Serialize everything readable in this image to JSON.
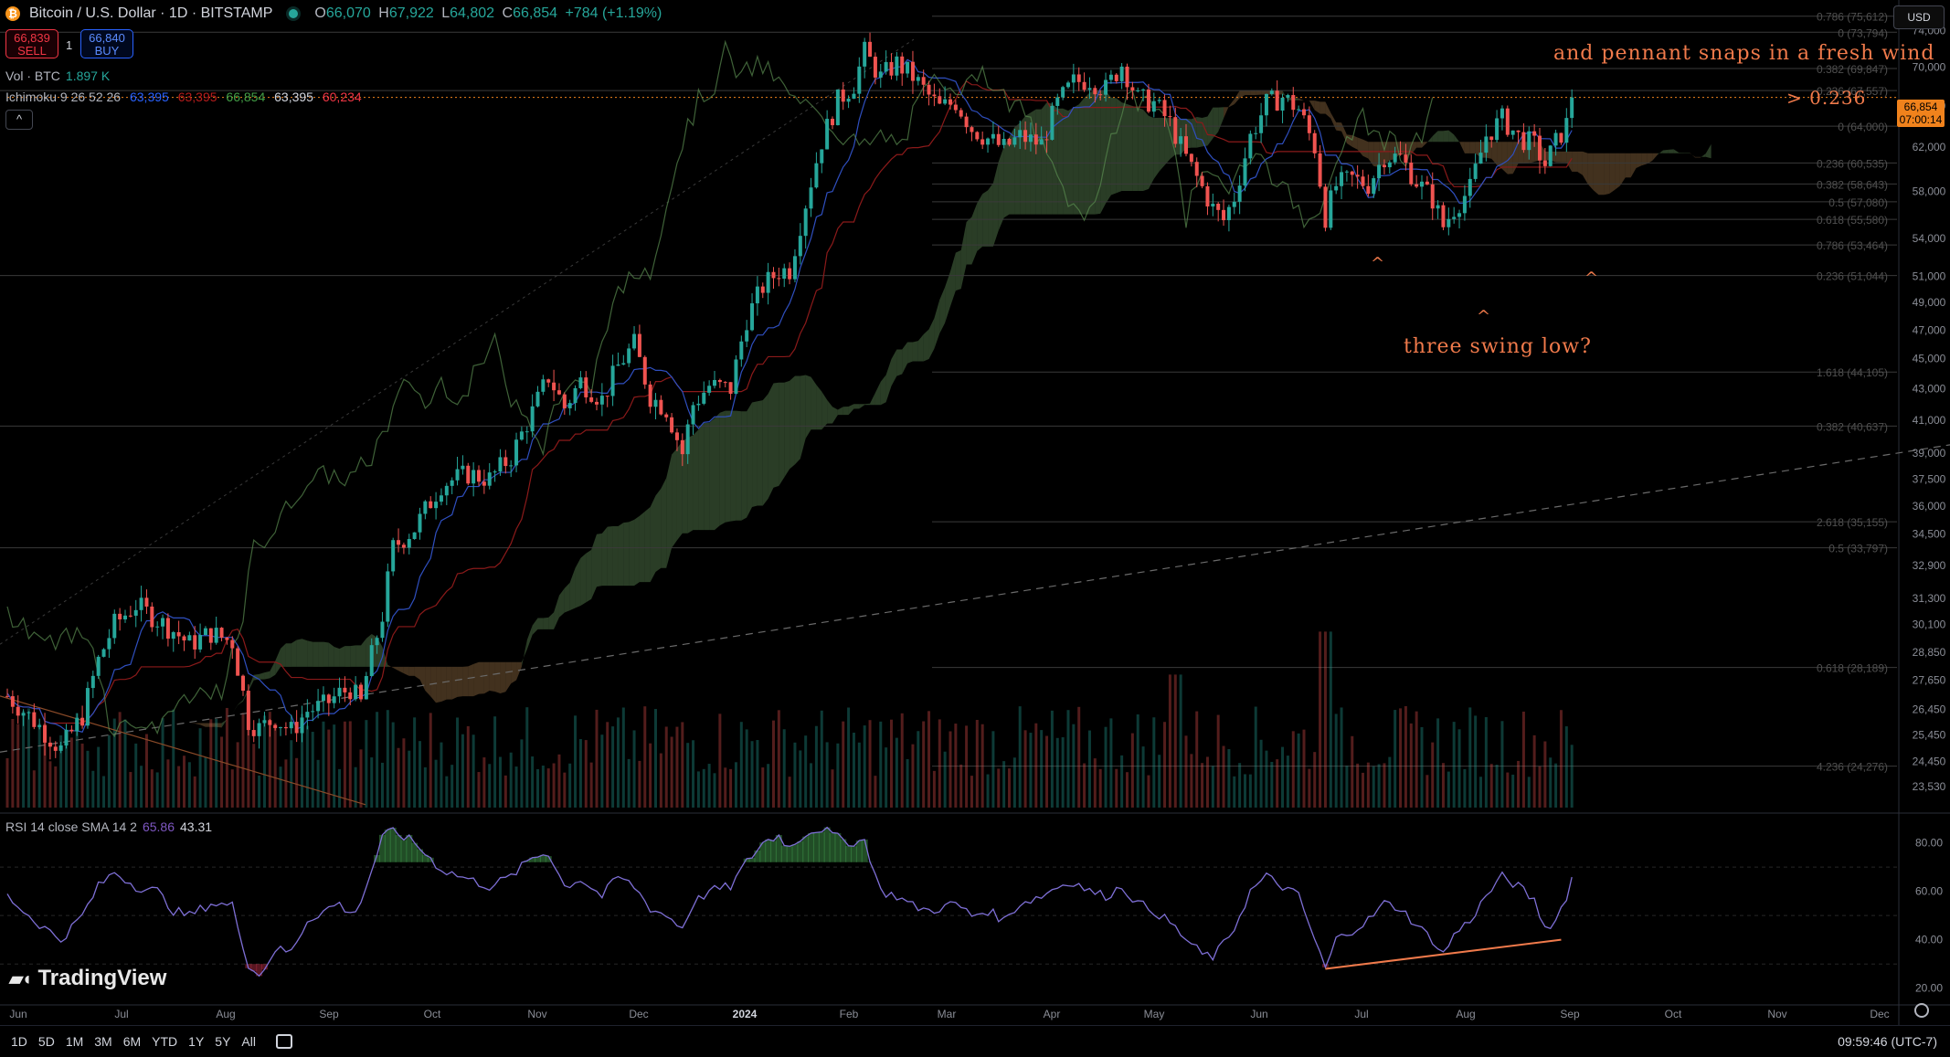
{
  "header": {
    "symbol": "Bitcoin / U.S. Dollar · 1D · BITSTAMP",
    "ohlc": [
      {
        "k": "O",
        "v": "66,070"
      },
      {
        "k": "H",
        "v": "67,922"
      },
      {
        "k": "L",
        "v": "64,802"
      },
      {
        "k": "C",
        "v": "66,854"
      }
    ],
    "change": "+784 (+1.19%)"
  },
  "trade": {
    "sell_price": "66,839",
    "sell_label": "SELL",
    "spread": "1",
    "buy_price": "66,840",
    "buy_label": "BUY"
  },
  "volume": {
    "label": "Vol · BTC",
    "value": "1.897 K"
  },
  "ichimoku": {
    "label": "Ichimoku 9 26 52 26",
    "values": [
      {
        "v": "63,395",
        "color": "#2962ff"
      },
      {
        "v": "63,395",
        "color": "#b71c1c"
      },
      {
        "v": "66,854",
        "color": "#43a047"
      },
      {
        "v": "63,395",
        "color": "#d1d4dc"
      },
      {
        "v": "60,234",
        "color": "#f23645"
      }
    ]
  },
  "collapse_label": "^",
  "currency": "USD",
  "price_tag": {
    "price": "66,854",
    "countdown": "07:00:14"
  },
  "rsi": {
    "label": "RSI 14 close SMA 14 2",
    "value": "65.86",
    "sma": "43.31"
  },
  "annotations": {
    "top": "and pennant snaps in a fresh wind",
    "fib": "> 0.236",
    "swing": "three swing low?",
    "carets": [
      "^",
      "^",
      "^"
    ]
  },
  "logo": "TradingView",
  "bottom_bar": {
    "ranges": [
      "1D",
      "5D",
      "1M",
      "3M",
      "6M",
      "YTD",
      "1Y",
      "5Y",
      "All"
    ],
    "clock": "09:59:46 (UTC-7)"
  },
  "chart_data": {
    "type": "candlestick",
    "interval": "1D",
    "exchange": "BITSTAMP",
    "y_scale": "log",
    "ylim": [
      22800,
      76000
    ],
    "y_ticks": [
      "74,000",
      "70,000",
      "66,000",
      "62,000",
      "58,000",
      "54,000",
      "51,000",
      "49,000",
      "47,000",
      "45,000",
      "43,000",
      "41,000",
      "39,000",
      "37,500",
      "36,000",
      "34,500",
      "32,900",
      "31,300",
      "30,100",
      "28,850",
      "27,650",
      "26,450",
      "25,450",
      "24,450",
      "23,530"
    ],
    "x_labels": [
      "Jun",
      "Jul",
      "Aug",
      "Sep",
      "Oct",
      "Nov",
      "Dec",
      "2024",
      "Feb",
      "Mar",
      "Apr",
      "May",
      "Jun",
      "Jul",
      "Aug",
      "Sep",
      "Oct",
      "Nov",
      "Dec"
    ],
    "price_path": [
      [
        0,
        27000
      ],
      [
        5,
        26000
      ],
      [
        10,
        24900
      ],
      [
        14,
        26200
      ],
      [
        17,
        28500
      ],
      [
        20,
        30100
      ],
      [
        24,
        31000
      ],
      [
        28,
        30300
      ],
      [
        31,
        29800
      ],
      [
        34,
        29200
      ],
      [
        38,
        29700
      ],
      [
        42,
        29300
      ],
      [
        45,
        26000
      ],
      [
        47,
        25700
      ],
      [
        50,
        26100
      ],
      [
        53,
        25600
      ],
      [
        56,
        26400
      ],
      [
        59,
        26600
      ],
      [
        62,
        27100
      ],
      [
        64,
        27300
      ],
      [
        66,
        26700
      ],
      [
        67,
        27800
      ],
      [
        70,
        30500
      ],
      [
        72,
        33800
      ],
      [
        76,
        34800
      ],
      [
        81,
        37200
      ],
      [
        86,
        37800
      ],
      [
        90,
        37500
      ],
      [
        94,
        38800
      ],
      [
        98,
        41500
      ],
      [
        101,
        43800
      ],
      [
        104,
        41800
      ],
      [
        107,
        43500
      ],
      [
        111,
        42300
      ],
      [
        114,
        44500
      ],
      [
        117,
        46000
      ],
      [
        120,
        42500
      ],
      [
        123,
        41700
      ],
      [
        126,
        39000
      ],
      [
        128,
        42000
      ],
      [
        131,
        43200
      ],
      [
        135,
        43000
      ],
      [
        138,
        47800
      ],
      [
        141,
        50200
      ],
      [
        144,
        51400
      ],
      [
        146,
        51500
      ],
      [
        149,
        57000
      ],
      [
        152,
        62600
      ],
      [
        155,
        66500
      ],
      [
        158,
        68200
      ],
      [
        160,
        71600
      ],
      [
        163,
        68900
      ],
      [
        166,
        70400
      ],
      [
        169,
        69000
      ],
      [
        172,
        67000
      ],
      [
        174,
        65800
      ],
      [
        177,
        66400
      ],
      [
        180,
        63800
      ],
      [
        183,
        62800
      ],
      [
        186,
        61900
      ],
      [
        189,
        63000
      ],
      [
        193,
        62300
      ],
      [
        196,
        66200
      ],
      [
        199,
        68400
      ],
      [
        202,
        68700
      ],
      [
        205,
        67700
      ],
      [
        208,
        70300
      ],
      [
        211,
        66700
      ],
      [
        214,
        66300
      ],
      [
        217,
        64300
      ],
      [
        220,
        61000
      ],
      [
        223,
        58300
      ],
      [
        225,
        56500
      ],
      [
        227,
        55500
      ],
      [
        229,
        57500
      ],
      [
        232,
        63000
      ],
      [
        235,
        66200
      ],
      [
        238,
        66900
      ],
      [
        241,
        65700
      ],
      [
        244,
        62000
      ],
      [
        246,
        55800
      ],
      [
        248,
        58500
      ],
      [
        251,
        59100
      ],
      [
        254,
        58600
      ],
      [
        257,
        61200
      ],
      [
        260,
        61000
      ],
      [
        263,
        58900
      ],
      [
        266,
        57300
      ],
      [
        268,
        55000
      ],
      [
        270,
        56500
      ],
      [
        273,
        58200
      ],
      [
        276,
        63100
      ],
      [
        279,
        64700
      ],
      [
        282,
        63000
      ],
      [
        285,
        62200
      ],
      [
        287,
        60400
      ],
      [
        289,
        62400
      ],
      [
        291,
        64200
      ],
      [
        292,
        66854
      ]
    ],
    "volume_spikes": [
      [
        218,
        "Mar"
      ],
      [
        246,
        "Aug"
      ]
    ],
    "fib_levels": [
      {
        "label": "0.786 (75,612)",
        "price": 75612,
        "full": false
      },
      {
        "label": "0 (73,794)",
        "price": 73794,
        "full": true
      },
      {
        "label": "0.382 (69,847)",
        "price": 69847,
        "full": false
      },
      {
        "label": "0.236 (67,557)",
        "price": 67557,
        "full": true
      },
      {
        "label": "0 (64,000)",
        "price": 64000,
        "full": false
      },
      {
        "label": "0.236 (60,535)",
        "price": 60535,
        "full": false
      },
      {
        "label": "0.382 (58,643)",
        "price": 58643,
        "full": false
      },
      {
        "label": "0.5 (57,080)",
        "price": 57080,
        "full": false
      },
      {
        "label": "0.618 (55,580)",
        "price": 55580,
        "full": false
      },
      {
        "label": "0.786 (53,464)",
        "price": 53464,
        "full": false
      },
      {
        "label": "0.236 (51,044)",
        "price": 51044,
        "full": true
      },
      {
        "label": "1.618 (44,105)",
        "price": 44105,
        "full": false
      },
      {
        "label": "0.382 (40,637)",
        "price": 40637,
        "full": true
      },
      {
        "label": "2.618 (35,155)",
        "price": 35155,
        "full": false
      },
      {
        "label": "0.5 (33,797)",
        "price": 33797,
        "full": true
      },
      {
        "label": "0.618 (28,189)",
        "price": 28189,
        "full": false
      },
      {
        "label": "4.236 (24,276)",
        "price": 24276,
        "full": false
      }
    ],
    "rsi_panel": {
      "ylim": [
        15,
        90
      ],
      "y_ticks": [
        "80.00",
        "60.00",
        "40.00",
        "20.00"
      ],
      "path": [
        [
          0,
          58
        ],
        [
          5,
          48
        ],
        [
          10,
          40
        ],
        [
          14,
          50
        ],
        [
          17,
          62
        ],
        [
          20,
          68
        ],
        [
          24,
          62
        ],
        [
          28,
          60
        ],
        [
          31,
          52
        ],
        [
          34,
          50
        ],
        [
          38,
          55
        ],
        [
          42,
          54
        ],
        [
          45,
          30
        ],
        [
          47,
          25
        ],
        [
          50,
          36
        ],
        [
          53,
          35
        ],
        [
          56,
          48
        ],
        [
          59,
          52
        ],
        [
          62,
          55
        ],
        [
          64,
          50
        ],
        [
          66,
          56
        ],
        [
          67,
          62
        ],
        [
          70,
          82
        ],
        [
          72,
          85
        ],
        [
          76,
          80
        ],
        [
          81,
          69
        ],
        [
          86,
          65
        ],
        [
          90,
          62
        ],
        [
          94,
          66
        ],
        [
          98,
          74
        ],
        [
          101,
          76
        ],
        [
          104,
          62
        ],
        [
          107,
          65
        ],
        [
          111,
          58
        ],
        [
          114,
          66
        ],
        [
          117,
          62
        ],
        [
          120,
          53
        ],
        [
          123,
          50
        ],
        [
          126,
          45
        ],
        [
          128,
          55
        ],
        [
          131,
          60
        ],
        [
          135,
          62
        ],
        [
          138,
          72
        ],
        [
          141,
          80
        ],
        [
          144,
          83
        ],
        [
          146,
          78
        ],
        [
          149,
          84
        ],
        [
          152,
          86
        ],
        [
          155,
          82
        ],
        [
          158,
          80
        ],
        [
          160,
          81
        ],
        [
          163,
          60
        ],
        [
          166,
          58
        ],
        [
          169,
          54
        ],
        [
          172,
          52
        ],
        [
          174,
          53
        ],
        [
          177,
          55
        ],
        [
          180,
          50
        ],
        [
          183,
          52
        ],
        [
          186,
          48
        ],
        [
          189,
          55
        ],
        [
          193,
          58
        ],
        [
          196,
          62
        ],
        [
          199,
          64
        ],
        [
          202,
          60
        ],
        [
          205,
          58
        ],
        [
          208,
          62
        ],
        [
          211,
          55
        ],
        [
          214,
          52
        ],
        [
          217,
          47
        ],
        [
          220,
          40
        ],
        [
          223,
          34
        ],
        [
          225,
          33
        ],
        [
          227,
          38
        ],
        [
          229,
          45
        ],
        [
          232,
          60
        ],
        [
          235,
          66
        ],
        [
          238,
          62
        ],
        [
          241,
          58
        ],
        [
          244,
          40
        ],
        [
          246,
          28
        ],
        [
          248,
          40
        ],
        [
          251,
          44
        ],
        [
          254,
          48
        ],
        [
          257,
          55
        ],
        [
          260,
          53
        ],
        [
          263,
          46
        ],
        [
          266,
          40
        ],
        [
          268,
          34
        ],
        [
          270,
          42
        ],
        [
          273,
          48
        ],
        [
          276,
          58
        ],
        [
          279,
          66
        ],
        [
          282,
          62
        ],
        [
          285,
          56
        ],
        [
          287,
          45
        ],
        [
          289,
          48
        ],
        [
          291,
          58
        ],
        [
          292,
          65.86
        ]
      ],
      "divergence_line": [
        [
          246,
          28
        ],
        [
          290,
          40
        ]
      ]
    }
  }
}
